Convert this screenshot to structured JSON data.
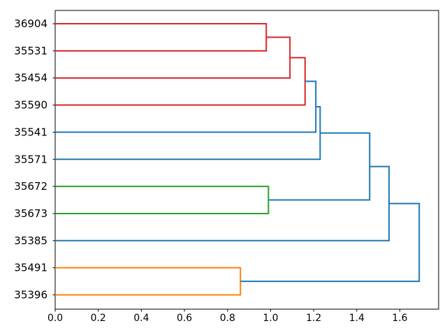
{
  "figure_title": "",
  "chart_data": {
    "type": "dendrogram",
    "orientation": "right",
    "title": "",
    "xlabel": "",
    "ylabel": "",
    "grid": false,
    "legend": null,
    "axis_color": "#000000",
    "text_color": "#000000",
    "background_color": "#ffffff",
    "line_width": 2,
    "xlim": [
      0,
      1.78
    ],
    "xticks": [
      {
        "value": 0.0,
        "label": "0.0"
      },
      {
        "value": 0.2,
        "label": "0.2"
      },
      {
        "value": 0.4,
        "label": "0.4"
      },
      {
        "value": 0.6,
        "label": "0.6"
      },
      {
        "value": 0.8,
        "label": "0.8"
      },
      {
        "value": 1.0,
        "label": "1.0"
      },
      {
        "value": 1.2,
        "label": "1.2"
      },
      {
        "value": 1.4,
        "label": "1.4"
      },
      {
        "value": 1.6,
        "label": "1.6"
      }
    ],
    "leaves": [
      "36904",
      "35531",
      "35454",
      "35590",
      "35541",
      "35571",
      "35672",
      "35673",
      "35385",
      "35491",
      "35396"
    ],
    "cluster_colors": {
      "above_threshold_blue": "#1f77b4",
      "red": "#d62728",
      "green": "#2ca02c",
      "orange": "#ff7f0e"
    },
    "links": [
      {
        "merge": "36904+35531",
        "pos1": 0,
        "pos2": 1,
        "height": 0.98,
        "child1_height": 0,
        "child2_height": 0,
        "color": "#d62728"
      },
      {
        "merge": "(36904,35531)+35454",
        "pos1": 0.5,
        "pos2": 2,
        "height": 1.09,
        "child1_height": 0.98,
        "child2_height": 0,
        "color": "#d62728"
      },
      {
        "merge": "red+35590",
        "pos1": 1.25,
        "pos2": 3,
        "height": 1.16,
        "child1_height": 1.09,
        "child2_height": 0,
        "color": "#d62728"
      },
      {
        "merge": "red+35541",
        "pos1": 2.125,
        "pos2": 4,
        "height": 1.21,
        "child1_height": 1.16,
        "child2_height": 0,
        "color": "#1f77b4"
      },
      {
        "merge": "cluster+35571",
        "pos1": 3.0625,
        "pos2": 5,
        "height": 1.23,
        "child1_height": 1.21,
        "child2_height": 0,
        "color": "#1f77b4"
      },
      {
        "merge": "35672+35673",
        "pos1": 6,
        "pos2": 7,
        "height": 0.99,
        "child1_height": 0,
        "child2_height": 0,
        "color": "#2ca02c"
      },
      {
        "merge": "cluster+green",
        "pos1": 4.03125,
        "pos2": 6.5,
        "height": 1.46,
        "child1_height": 1.23,
        "child2_height": 0.99,
        "color": "#1f77b4"
      },
      {
        "merge": "cluster+35385",
        "pos1": 5.265625,
        "pos2": 8,
        "height": 1.55,
        "child1_height": 1.46,
        "child2_height": 0,
        "color": "#1f77b4"
      },
      {
        "merge": "35491+35396",
        "pos1": 9,
        "pos2": 10,
        "height": 0.86,
        "child1_height": 0,
        "child2_height": 0,
        "color": "#ff7f0e"
      },
      {
        "merge": "root",
        "pos1": 6.6328125,
        "pos2": 9.5,
        "height": 1.69,
        "child1_height": 1.55,
        "child2_height": 0.86,
        "color": "#1f77b4"
      }
    ]
  }
}
